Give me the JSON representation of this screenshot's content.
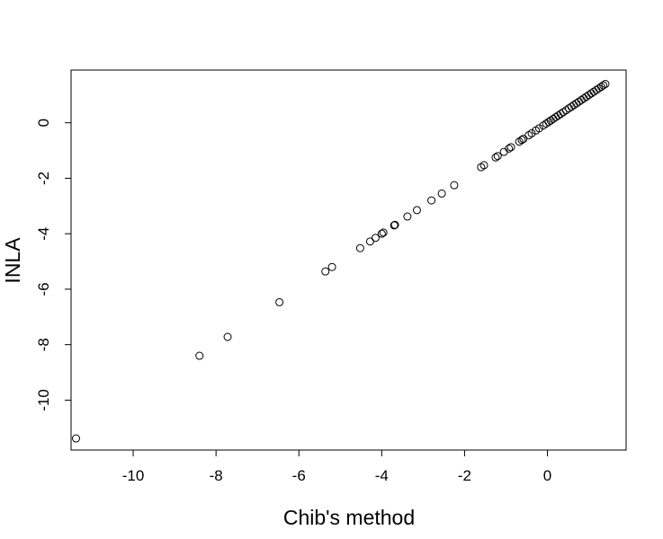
{
  "chart_data": {
    "type": "scatter",
    "title": "",
    "xlabel": "Chib's method",
    "ylabel": "INLA",
    "xlim": [
      -11.5,
      1.9
    ],
    "ylim": [
      -11.8,
      1.9
    ],
    "xticks": [
      -10,
      -8,
      -6,
      -4,
      -2,
      0
    ],
    "yticks": [
      -10,
      -8,
      -6,
      -4,
      -2,
      0
    ],
    "xtick_labels": [
      "-10",
      "-8",
      "-6",
      "-4",
      "-2",
      "0"
    ],
    "ytick_labels": [
      "-10",
      "-8",
      "-6",
      "-4",
      "-2",
      "0"
    ],
    "grid": false,
    "marker": "open-circle",
    "series": [
      {
        "points": [
          [
            -11.38,
            -11.38
          ],
          [
            -8.4,
            -8.4
          ],
          [
            -7.72,
            -7.72
          ],
          [
            -6.47,
            -6.47
          ],
          [
            -5.36,
            -5.36
          ],
          [
            -5.2,
            -5.2
          ],
          [
            -4.52,
            -4.52
          ],
          [
            -4.28,
            -4.28
          ],
          [
            -4.15,
            -4.15
          ],
          [
            -4.0,
            -4.0
          ],
          [
            -3.96,
            -3.96
          ],
          [
            -3.7,
            -3.7
          ],
          [
            -3.68,
            -3.68
          ],
          [
            -3.38,
            -3.38
          ],
          [
            -3.15,
            -3.15
          ],
          [
            -2.8,
            -2.8
          ],
          [
            -2.55,
            -2.55
          ],
          [
            -2.25,
            -2.25
          ],
          [
            -1.6,
            -1.6
          ],
          [
            -1.53,
            -1.53
          ],
          [
            -1.25,
            -1.25
          ],
          [
            -1.2,
            -1.2
          ],
          [
            -1.05,
            -1.05
          ],
          [
            -0.93,
            -0.93
          ],
          [
            -0.88,
            -0.88
          ],
          [
            -0.68,
            -0.68
          ],
          [
            -0.62,
            -0.62
          ],
          [
            -0.58,
            -0.58
          ],
          [
            -0.45,
            -0.45
          ],
          [
            -0.38,
            -0.38
          ],
          [
            -0.28,
            -0.28
          ],
          [
            -0.2,
            -0.2
          ],
          [
            -0.1,
            -0.1
          ],
          [
            -0.03,
            -0.03
          ],
          [
            0.03,
            0.03
          ],
          [
            0.08,
            0.08
          ],
          [
            0.14,
            0.14
          ],
          [
            0.2,
            0.2
          ],
          [
            0.26,
            0.26
          ],
          [
            0.32,
            0.32
          ],
          [
            0.38,
            0.38
          ],
          [
            0.45,
            0.45
          ],
          [
            0.52,
            0.52
          ],
          [
            0.58,
            0.58
          ],
          [
            0.64,
            0.64
          ],
          [
            0.7,
            0.7
          ],
          [
            0.76,
            0.76
          ],
          [
            0.82,
            0.82
          ],
          [
            0.88,
            0.88
          ],
          [
            0.94,
            0.94
          ],
          [
            1.0,
            1.0
          ],
          [
            1.06,
            1.06
          ],
          [
            1.12,
            1.12
          ],
          [
            1.18,
            1.18
          ],
          [
            1.24,
            1.24
          ],
          [
            1.3,
            1.3
          ],
          [
            1.35,
            1.35
          ],
          [
            1.4,
            1.4
          ]
        ]
      }
    ]
  }
}
